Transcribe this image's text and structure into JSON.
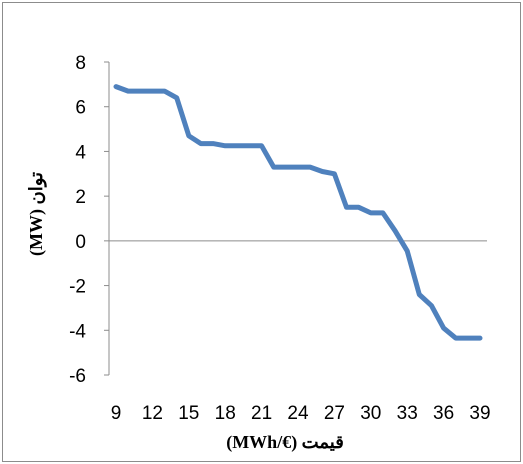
{
  "chart_data": {
    "type": "line",
    "title": "",
    "xlabel": "قیمت (€/MWh)",
    "ylabel": "توان (MW)",
    "xlim": [
      9,
      39
    ],
    "ylim": [
      -6,
      8
    ],
    "x_ticks": [
      9,
      12,
      15,
      18,
      21,
      24,
      27,
      30,
      33,
      36,
      39
    ],
    "y_ticks": [
      8,
      6,
      4,
      2,
      0,
      -2,
      -4,
      -6
    ],
    "grid": false,
    "legend": "none",
    "series": [
      {
        "color": "#4f81bd",
        "x": [
          9,
          10,
          11,
          12,
          13,
          14,
          15,
          16,
          17,
          18,
          19,
          20,
          21,
          22,
          23,
          24,
          25,
          26,
          27,
          28,
          29,
          30,
          31,
          32,
          33,
          34,
          35,
          36,
          37,
          38,
          39
        ],
        "y": [
          6.9,
          6.7,
          6.7,
          6.7,
          6.7,
          6.4,
          4.7,
          4.35,
          4.35,
          4.25,
          4.25,
          4.25,
          4.25,
          3.3,
          3.3,
          3.3,
          3.3,
          3.1,
          3.0,
          1.5,
          1.5,
          1.25,
          1.25,
          0.45,
          -0.45,
          -2.4,
          -2.9,
          -3.9,
          -4.35,
          -4.35,
          -4.35
        ]
      }
    ]
  }
}
